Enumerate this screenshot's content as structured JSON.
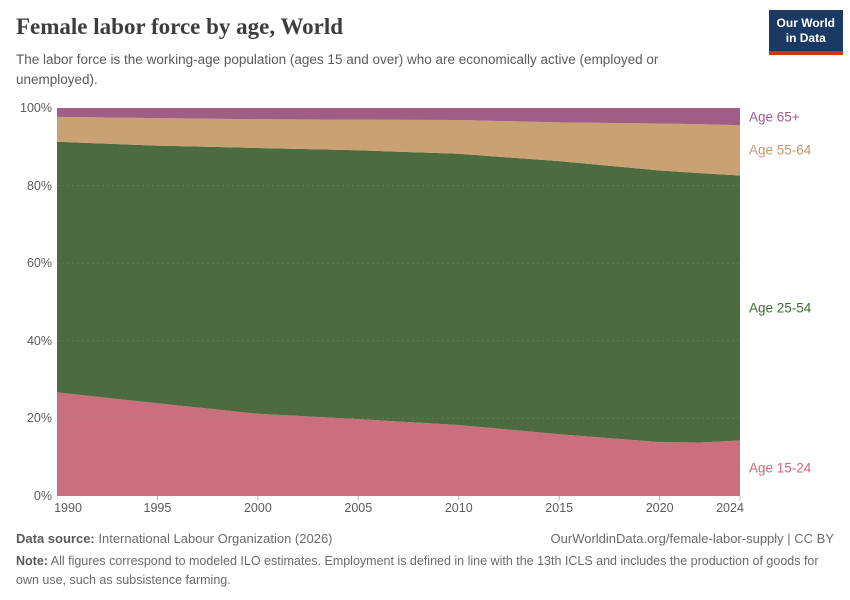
{
  "header": {
    "title": "Female labor force by age, World",
    "subtitle": "The labor force is the working-age population (ages 15 and over) who are economically active (employed or unemployed).",
    "logo_line1": "Our World",
    "logo_line2": "in Data",
    "logo_bg": "#1b3a63",
    "logo_accent": "#dc2c27"
  },
  "chart_data": {
    "type": "area",
    "stacked": true,
    "title": "Female labor force by age, World",
    "entity": "World",
    "unit": "%",
    "xlim": [
      1990,
      2024
    ],
    "ylim": [
      0,
      100
    ],
    "grid": "dashed-horizontal",
    "legend_position": "right-of-plot",
    "x": [
      1990,
      1995,
      2000,
      2005,
      2010,
      2015,
      2020,
      2022,
      2024
    ],
    "series": [
      {
        "name": "Age 15-24",
        "color": "#cb6f7f",
        "label_color": "#d4647a",
        "values": [
          26.7,
          23.9,
          21.2,
          19.8,
          18.3,
          15.9,
          13.9,
          13.8,
          14.3
        ]
      },
      {
        "name": "Age 25-54",
        "color": "#4c6c3f",
        "label_color": "#3f6a34",
        "values": [
          64.6,
          66.4,
          68.5,
          69.3,
          69.9,
          70.4,
          70.0,
          69.4,
          68.3
        ]
      },
      {
        "name": "Age 55-64",
        "color": "#c9a172",
        "label_color": "#c3986b",
        "values": [
          6.4,
          7.1,
          7.4,
          7.9,
          8.7,
          10.0,
          12.1,
          12.6,
          13.0
        ]
      },
      {
        "name": "Age 65+",
        "color": "#a05e87",
        "label_color": "#9d5b8b",
        "values": [
          2.3,
          2.6,
          2.9,
          3.0,
          3.1,
          3.7,
          4.0,
          4.2,
          4.4
        ]
      }
    ],
    "x_ticks": [
      1990,
      1995,
      2000,
      2005,
      2010,
      2015,
      2020,
      2024
    ],
    "y_ticks": [
      0,
      20,
      40,
      60,
      80,
      100
    ],
    "y_tick_suffix": "%"
  },
  "footer": {
    "datasource_label": "Data source:",
    "datasource_value": " International Labour Organization (2026)",
    "link": "OurWorldinData.org/female-labor-supply | CC BY",
    "note_label": "Note:",
    "note_value": " All figures correspond to modeled ILO estimates. Employment is defined in line with the 13th ICLS and includes the production of goods for own use, such as subsistence farming."
  }
}
